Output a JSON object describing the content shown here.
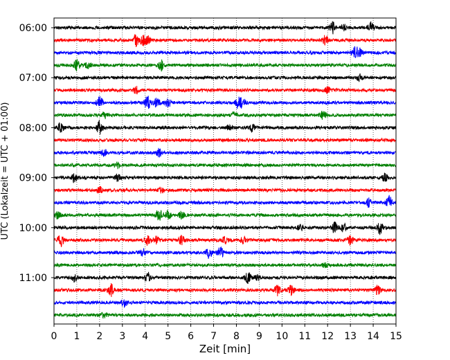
{
  "chart_data": {
    "type": "line",
    "title": "",
    "xlabel": "Zeit  [min]",
    "ylabel": "UTC (Lokalzeit = UTC + 01:00)",
    "xlim": [
      0,
      15
    ],
    "x_ticks": [
      0,
      1,
      2,
      3,
      4,
      5,
      6,
      7,
      8,
      9,
      10,
      11,
      12,
      13,
      14,
      15
    ],
    "y_tick_labels": [
      "06:00",
      "07:00",
      "08:00",
      "09:00",
      "10:00",
      "11:00"
    ],
    "grid": "vertical dotted",
    "trace_colors": [
      "#000000",
      "#ff0000",
      "#0000ff",
      "#008000"
    ],
    "traces": [
      {
        "start": "06:00",
        "color": "#000000",
        "events": [
          [
            12.2,
            0.9
          ],
          [
            13.9,
            0.8
          ],
          [
            12.7,
            0.5
          ]
        ]
      },
      {
        "start": "06:15",
        "color": "#ff0000",
        "events": [
          [
            3.6,
            0.9
          ],
          [
            3.9,
            0.7
          ],
          [
            4.1,
            0.6
          ],
          [
            11.9,
            0.7
          ]
        ]
      },
      {
        "start": "06:30",
        "color": "#0000ff",
        "events": [
          [
            13.2,
            1.0
          ],
          [
            13.4,
            0.6
          ]
        ]
      },
      {
        "start": "06:45",
        "color": "#008000",
        "events": [
          [
            1.0,
            0.9
          ],
          [
            1.5,
            0.5
          ],
          [
            4.7,
            0.8
          ]
        ]
      },
      {
        "start": "07:00",
        "color": "#000000",
        "events": [
          [
            13.4,
            0.5
          ]
        ]
      },
      {
        "start": "07:15",
        "color": "#ff0000",
        "events": [
          [
            3.6,
            0.5
          ],
          [
            12.0,
            0.5
          ]
        ]
      },
      {
        "start": "07:30",
        "color": "#0000ff",
        "events": [
          [
            2.0,
            1.0
          ],
          [
            4.1,
            1.0
          ],
          [
            4.5,
            0.6
          ],
          [
            5.0,
            0.7
          ],
          [
            8.1,
            1.0
          ],
          [
            8.3,
            0.6
          ]
        ]
      },
      {
        "start": "07:45",
        "color": "#008000",
        "events": [
          [
            2.2,
            0.5
          ],
          [
            7.9,
            0.5
          ],
          [
            11.8,
            0.6
          ]
        ]
      },
      {
        "start": "08:00",
        "color": "#000000",
        "events": [
          [
            0.3,
            0.8
          ],
          [
            2.0,
            0.9
          ],
          [
            7.7,
            0.5
          ],
          [
            8.7,
            0.5
          ]
        ]
      },
      {
        "start": "08:15",
        "color": "#ff0000",
        "events": []
      },
      {
        "start": "08:30",
        "color": "#0000ff",
        "events": [
          [
            4.6,
            0.6
          ],
          [
            2.2,
            0.4
          ]
        ]
      },
      {
        "start": "08:45",
        "color": "#008000",
        "events": [
          [
            2.8,
            0.4
          ]
        ]
      },
      {
        "start": "09:00",
        "color": "#000000",
        "events": [
          [
            0.9,
            0.7
          ],
          [
            2.8,
            0.5
          ],
          [
            14.5,
            0.6
          ]
        ]
      },
      {
        "start": "09:15",
        "color": "#ff0000",
        "events": [
          [
            2.0,
            0.5
          ],
          [
            4.7,
            0.4
          ]
        ]
      },
      {
        "start": "09:30",
        "color": "#0000ff",
        "events": [
          [
            14.7,
            1.0
          ],
          [
            13.8,
            0.6
          ]
        ]
      },
      {
        "start": "09:45",
        "color": "#008000",
        "events": [
          [
            0.2,
            0.7
          ],
          [
            4.6,
            1.0
          ],
          [
            5.0,
            0.6
          ],
          [
            5.6,
            0.5
          ]
        ]
      },
      {
        "start": "10:00",
        "color": "#000000",
        "events": [
          [
            12.3,
            0.8
          ],
          [
            12.7,
            0.6
          ],
          [
            14.3,
            1.0
          ],
          [
            10.8,
            0.5
          ]
        ]
      },
      {
        "start": "10:15",
        "color": "#ff0000",
        "events": [
          [
            0.3,
            1.0
          ],
          [
            4.1,
            0.8
          ],
          [
            4.5,
            0.6
          ],
          [
            5.6,
            0.6
          ],
          [
            7.5,
            0.6
          ],
          [
            8.3,
            0.5
          ],
          [
            13.0,
            0.8
          ]
        ]
      },
      {
        "start": "10:30",
        "color": "#0000ff",
        "events": [
          [
            6.8,
            0.9
          ],
          [
            7.3,
            0.8
          ],
          [
            3.9,
            0.5
          ]
        ]
      },
      {
        "start": "10:45",
        "color": "#008000",
        "events": [
          [
            11.9,
            0.4
          ]
        ]
      },
      {
        "start": "11:00",
        "color": "#000000",
        "events": [
          [
            0.9,
            0.6
          ],
          [
            4.1,
            0.8
          ],
          [
            8.5,
            0.8
          ],
          [
            8.9,
            0.5
          ]
        ]
      },
      {
        "start": "11:15",
        "color": "#ff0000",
        "events": [
          [
            2.5,
            0.9
          ],
          [
            9.8,
            0.8
          ],
          [
            10.4,
            0.7
          ],
          [
            14.2,
            0.7
          ]
        ]
      },
      {
        "start": "11:30",
        "color": "#0000ff",
        "events": [
          [
            3.1,
            0.6
          ]
        ]
      },
      {
        "start": "11:45",
        "color": "#008000",
        "events": [
          [
            2.2,
            0.4
          ]
        ]
      }
    ]
  }
}
